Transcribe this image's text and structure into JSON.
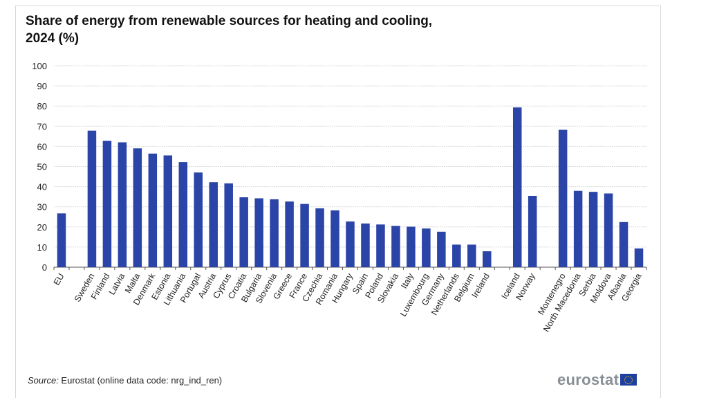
{
  "title_line1": "Share of energy from renewable sources for heating and cooling,",
  "title_line2": "2024 (%)",
  "source_label": "Source:",
  "source_text": " Eurostat (online data code: nrg_ind_ren)",
  "logo_text": "eurostat",
  "chart_data": {
    "type": "bar",
    "title": "Share of energy from renewable sources for heating and cooling, 2024 (%)",
    "ylim": [
      0,
      100
    ],
    "yticks": [
      0,
      10,
      20,
      30,
      40,
      50,
      60,
      70,
      80,
      90,
      100
    ],
    "grid": true,
    "bar_color": "#2a44a8",
    "categories": [
      "EU",
      "",
      "Sweden",
      "Finland",
      "Latvia",
      "Malta",
      "Denmark",
      "Estonia",
      "Lithuania",
      "Portugal",
      "Austria",
      "Cyprus",
      "Croatia",
      "Bulgaria",
      "Slovenia",
      "Greece",
      "France",
      "Czechia",
      "Romania",
      "Hungary",
      "Spain",
      "Poland",
      "Slovakia",
      "Italy",
      "Luxembourg",
      "Germany",
      "Netherlands",
      "Belgium",
      "Ireland",
      "",
      "Iceland",
      "Norway",
      "",
      "Montenegro",
      "North Macedonia",
      "Serbia",
      "Moldova",
      "Albania",
      "Georgia"
    ],
    "values": [
      26.7,
      null,
      67.8,
      62.7,
      62.0,
      59.0,
      56.4,
      55.5,
      52.2,
      47.0,
      42.2,
      41.6,
      34.7,
      34.2,
      33.7,
      32.6,
      31.4,
      29.2,
      28.2,
      22.7,
      21.7,
      21.2,
      20.5,
      20.1,
      19.2,
      17.6,
      11.2,
      11.2,
      7.9,
      null,
      79.3,
      35.4,
      null,
      68.2,
      37.9,
      37.4,
      36.6,
      22.4,
      9.3
    ]
  }
}
